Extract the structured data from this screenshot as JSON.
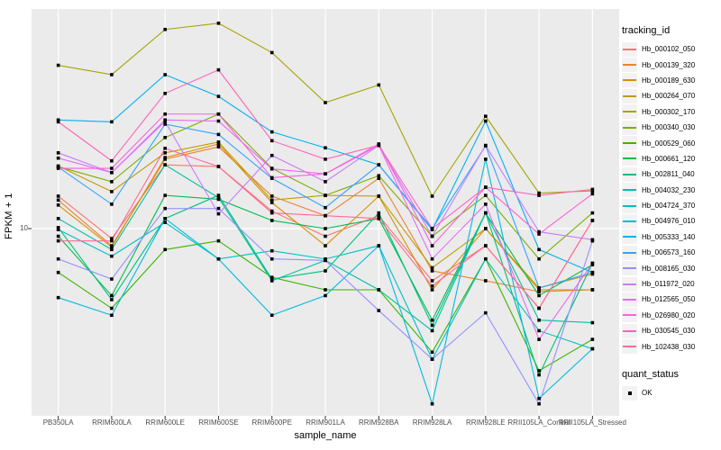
{
  "colors": {
    "panel_bg": "#EBEBEB",
    "grid": "#FFFFFF",
    "point": "#000000",
    "tick_text": "#4D4D4D",
    "axis_title_text": "#000000",
    "legend_key_bg": "#F2F2F2",
    "tick_mark": "#333333"
  },
  "chart_data": {
    "type": "line",
    "title": "",
    "xlabel": "sample_name",
    "ylabel": "FPKM + 1",
    "y_scale": "log10",
    "grid": "major-only",
    "legend_position": "right",
    "y_ticks": [
      {
        "value": 10,
        "label": "10"
      }
    ],
    "ylim_approx": [
      1.8,
      80
    ],
    "point_shape": "filled-square",
    "categories": [
      "PB350LA",
      "RRIM600LA",
      "RRIM600LE",
      "RRIM600SE",
      "RRIM600PE",
      "RRIM901LA",
      "RRIM928BA",
      "RRIM928LA",
      "RRIM928LE",
      "RRII105LA_Control",
      "RRII105LA_Stressed"
    ],
    "legend": {
      "color_title": "tracking_id",
      "shape_title": "quant_status",
      "shape_items": [
        {
          "label": "OK"
        }
      ]
    },
    "series": [
      {
        "name": "Hb_000102_050",
        "color": "#F8766D",
        "values": [
          13.6,
          9.1,
          18.3,
          18.0,
          11.8,
          9.3,
          11.3,
          6.1,
          8.5,
          4.7,
          10.8
        ]
      },
      {
        "name": "Hb_000139_320",
        "color": "#EA8331",
        "values": [
          13.1,
          8.5,
          19.3,
          21.7,
          13.6,
          11.3,
          16.1,
          6.7,
          6.1,
          5.5,
          5.6
        ]
      },
      {
        "name": "Hb_000189_630",
        "color": "#D89000",
        "values": [
          12.5,
          8.4,
          19.6,
          22.3,
          12.8,
          8.5,
          13.6,
          5.6,
          10.0,
          5.6,
          5.6
        ]
      },
      {
        "name": "Hb_000264_070",
        "color": "#C09B00",
        "values": [
          18.1,
          14.2,
          20.5,
          22.7,
          13.1,
          13.7,
          13.6,
          6.9,
          10.0,
          5.7,
          6.5
        ]
      },
      {
        "name": "Hb_000302_170",
        "color": "#A3A500",
        "values": [
          47.0,
          43.0,
          66.0,
          70.0,
          53.0,
          33.0,
          39.0,
          13.6,
          29.0,
          14.0,
          14.3
        ]
      },
      {
        "name": "Hb_000340_030",
        "color": "#7CAE00",
        "values": [
          18.0,
          15.6,
          23.7,
          29.6,
          17.7,
          13.7,
          16.5,
          9.3,
          13.7,
          7.5,
          11.6
        ]
      },
      {
        "name": "Hb_000529_060",
        "color": "#39B600",
        "values": [
          6.6,
          4.7,
          8.2,
          8.9,
          6.3,
          5.6,
          5.6,
          3.1,
          7.5,
          2.6,
          3.5
        ]
      },
      {
        "name": "Hb_000661_120",
        "color": "#00BB4E",
        "values": [
          9.3,
          5.3,
          13.7,
          13.2,
          10.8,
          10.0,
          11.0,
          4.2,
          11.6,
          5.3,
          7.1
        ]
      },
      {
        "name": "Hb_002811_040",
        "color": "#00BF7D",
        "values": [
          10.1,
          5.1,
          11.0,
          13.7,
          6.2,
          6.7,
          11.6,
          4.0,
          11.6,
          2.5,
          7.2
        ]
      },
      {
        "name": "Hb_004032_230",
        "color": "#00C1A3",
        "values": [
          11.0,
          8.2,
          18.3,
          13.4,
          6.1,
          7.4,
          5.6,
          3.8,
          11.6,
          4.2,
          4.1
        ]
      },
      {
        "name": "Hb_004724_370",
        "color": "#00BFC4",
        "values": [
          9.9,
          7.7,
          10.6,
          7.5,
          8.1,
          7.5,
          8.5,
          2.9,
          7.5,
          3.8,
          3.2
        ]
      },
      {
        "name": "Hb_004976_010",
        "color": "#00BAE0",
        "values": [
          5.2,
          4.4,
          11.0,
          7.5,
          4.4,
          5.3,
          8.5,
          1.9,
          19.3,
          2.0,
          3.2
        ]
      },
      {
        "name": "Hb_005333_140",
        "color": "#00B0F6",
        "values": [
          28.0,
          27.5,
          43.0,
          35.0,
          25.0,
          21.5,
          18.3,
          9.9,
          27.7,
          8.2,
          6.6
        ]
      },
      {
        "name": "Hb_006573_160",
        "color": "#35A2FF",
        "values": [
          17.9,
          12.6,
          26.9,
          24.4,
          16.1,
          12.2,
          18.3,
          10.0,
          21.9,
          5.7,
          6.6
        ]
      },
      {
        "name": "Hb_008165_030",
        "color": "#9590FF",
        "values": [
          7.5,
          6.2,
          12.1,
          12.1,
          7.5,
          7.4,
          4.6,
          2.9,
          4.5,
          1.9,
          8.9
        ]
      },
      {
        "name": "Hb_011972_020",
        "color": "#C77CFF",
        "values": [
          20.5,
          17.0,
          27.6,
          11.5,
          20.0,
          15.6,
          22.0,
          9.3,
          22.0,
          9.7,
          9.0
        ]
      },
      {
        "name": "Hb_012565_050",
        "color": "#E76BF3",
        "values": [
          19.5,
          17.0,
          28.0,
          27.7,
          17.6,
          16.8,
          22.0,
          7.5,
          12.6,
          3.5,
          7.2
        ]
      },
      {
        "name": "Hb_026980_020",
        "color": "#FA62DB",
        "values": [
          17.7,
          17.7,
          29.6,
          29.6,
          16.2,
          16.8,
          22.3,
          8.5,
          14.8,
          9.5,
          13.9
        ]
      },
      {
        "name": "Hb_030545_030",
        "color": "#FF62BC",
        "values": [
          27.5,
          19.0,
          36.0,
          45.0,
          23.0,
          19.3,
          22.0,
          10.0,
          14.8,
          13.7,
          14.5
        ]
      },
      {
        "name": "Hb_102438_030",
        "color": "#FF6A98",
        "values": [
          8.9,
          8.9,
          21.4,
          18.0,
          11.6,
          11.3,
          11.0,
          5.8,
          8.5,
          4.7,
          10.8
        ]
      }
    ]
  }
}
